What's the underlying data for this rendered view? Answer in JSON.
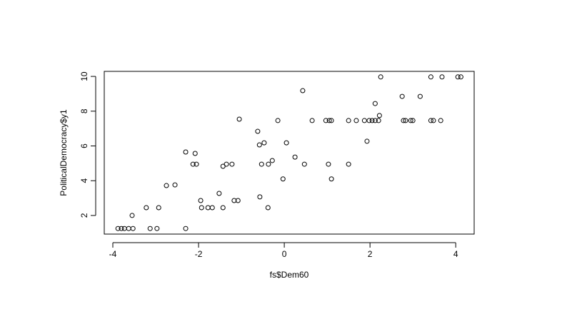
{
  "chart_data": {
    "type": "scatter",
    "x_label": "fs$Dem60",
    "y_label": "PoliticalDemocracy$y1",
    "xlim": [
      -4.2,
      4.43
    ],
    "ylim": [
      0.93,
      10.29
    ],
    "xticks": [
      -4,
      -2,
      0,
      2,
      4
    ],
    "yticks": [
      2,
      4,
      6,
      8,
      10
    ],
    "x": [
      -3.88,
      -3.8,
      -3.73,
      -3.63,
      -3.53,
      -3.13,
      -2.97,
      -2.3,
      -3.55,
      -3.22,
      -2.93,
      -2.75,
      -2.55,
      -2.3,
      -2.13,
      -2.08,
      -2.05,
      -1.95,
      -1.93,
      -1.78,
      -1.68,
      -1.52,
      -1.43,
      -1.43,
      -1.35,
      -1.22,
      -1.17,
      -1.08,
      -1.05,
      -0.62,
      -0.58,
      -0.57,
      -0.53,
      -0.47,
      -0.38,
      -0.37,
      -0.28,
      -0.15,
      -0.03,
      0.05,
      0.25,
      0.43,
      0.47,
      0.65,
      0.97,
      1.03,
      1.05,
      1.1,
      1.1,
      1.5,
      1.5,
      1.68,
      1.87,
      1.93,
      1.98,
      2.05,
      2.12,
      2.12,
      2.2,
      2.22,
      2.25,
      2.75,
      2.78,
      2.83,
      2.95,
      3.0,
      3.17,
      3.42,
      3.42,
      3.48,
      3.65,
      3.68,
      4.05,
      4.12
    ],
    "y": [
      1.25,
      1.25,
      1.25,
      1.25,
      1.25,
      1.25,
      1.25,
      1.25,
      2.0,
      2.45,
      2.45,
      3.72,
      3.76,
      5.65,
      4.95,
      5.57,
      4.95,
      2.86,
      2.45,
      2.45,
      2.45,
      3.27,
      2.45,
      4.83,
      4.95,
      4.95,
      2.86,
      2.86,
      7.54,
      6.84,
      6.06,
      3.07,
      4.95,
      6.18,
      2.45,
      4.95,
      5.16,
      7.46,
      4.1,
      6.18,
      5.36,
      9.18,
      4.95,
      7.46,
      7.46,
      4.95,
      7.46,
      7.46,
      4.1,
      7.46,
      4.95,
      7.46,
      7.46,
      6.27,
      7.46,
      7.46,
      8.44,
      7.46,
      7.46,
      7.75,
      9.97,
      8.85,
      7.46,
      7.46,
      7.46,
      7.46,
      8.85,
      9.97,
      7.46,
      7.46,
      7.46,
      9.97,
      9.97,
      9.97
    ]
  }
}
